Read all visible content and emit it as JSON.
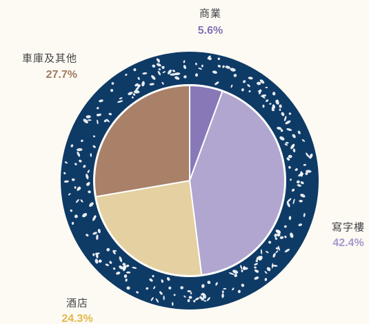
{
  "chart_data": {
    "type": "pie",
    "categories": [
      "商業",
      "寫字樓",
      "酒店",
      "車庫及其他"
    ],
    "values": [
      5.6,
      42.4,
      24.3,
      27.7
    ],
    "value_labels": [
      "5.6%",
      "42.4%",
      "24.3%",
      "27.7%"
    ],
    "colors": [
      "#8878b8",
      "#b0a6d0",
      "#e4d0a0",
      "#a98068"
    ],
    "label_colors": [
      "#8170b6",
      "#a598cd",
      "#e2b84c",
      "#a07a5e"
    ]
  }
}
